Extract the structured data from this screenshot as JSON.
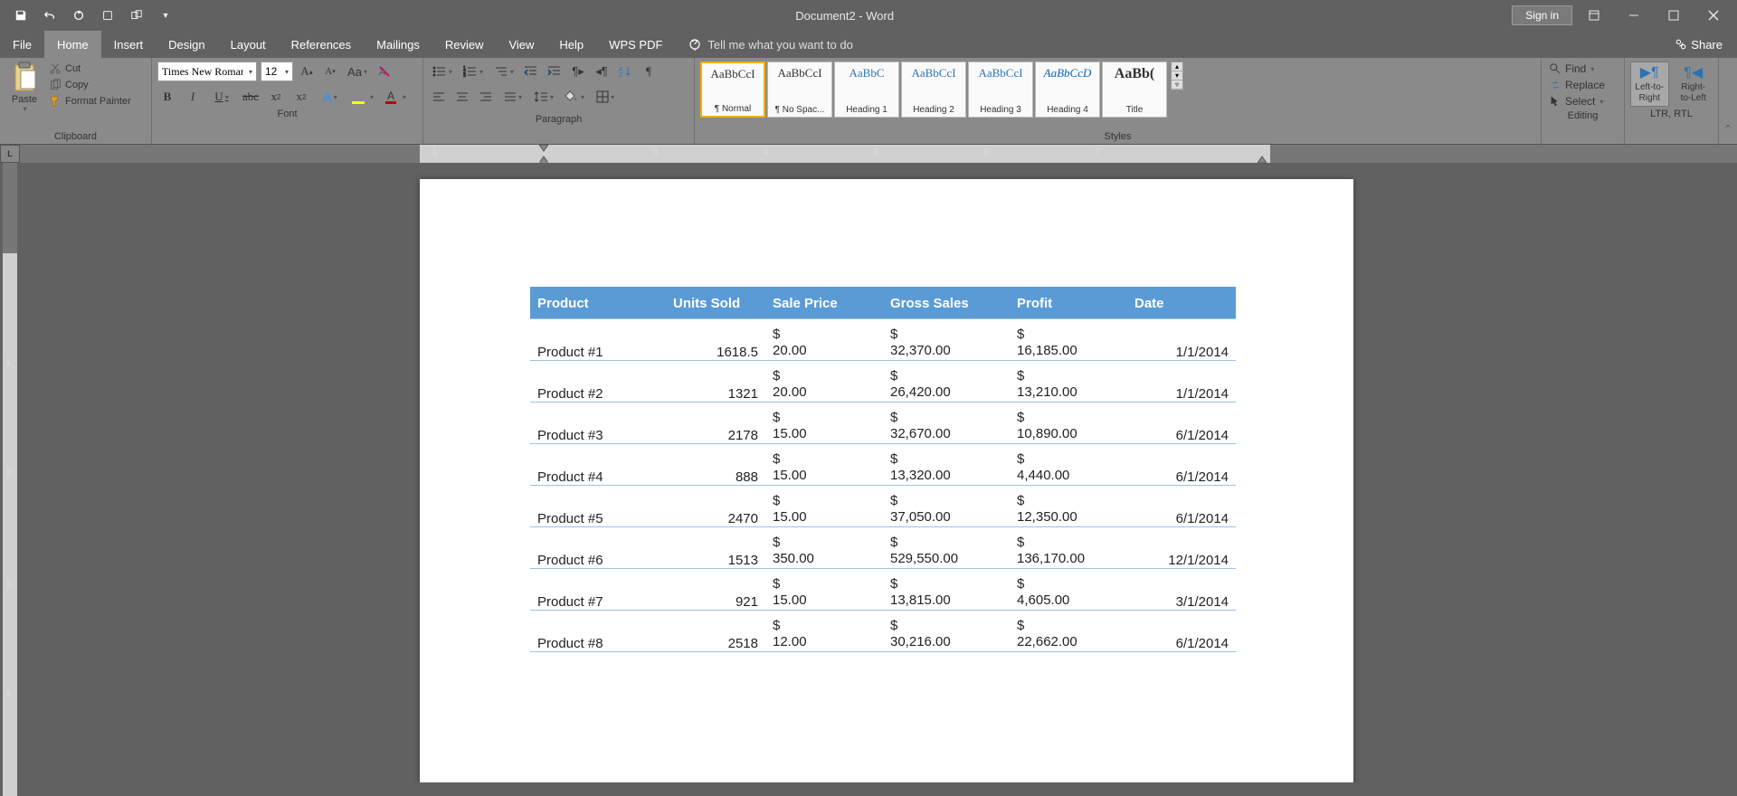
{
  "app": {
    "title": "Document2 - Word",
    "signin": "Sign in"
  },
  "menu": {
    "tabs": [
      "File",
      "Home",
      "Insert",
      "Design",
      "Layout",
      "References",
      "Mailings",
      "Review",
      "View",
      "Help",
      "WPS PDF"
    ],
    "active": "Home",
    "tellme": "Tell me what you want to do",
    "share": "Share"
  },
  "ribbon": {
    "clipboard": {
      "paste": "Paste",
      "cut": "Cut",
      "copy": "Copy",
      "format_painter": "Format Painter",
      "label": "Clipboard"
    },
    "font": {
      "name": "Times New Roman",
      "size": "12",
      "label": "Font"
    },
    "paragraph": {
      "label": "Paragraph"
    },
    "styles": {
      "label": "Styles",
      "items": [
        {
          "preview": "AaBbCcI",
          "label": "¶ Normal",
          "cls": ""
        },
        {
          "preview": "AaBbCcI",
          "label": "¶ No Spac...",
          "cls": ""
        },
        {
          "preview": "AaBbC",
          "label": "Heading 1",
          "cls": "heading"
        },
        {
          "preview": "AaBbCcI",
          "label": "Heading 2",
          "cls": "heading"
        },
        {
          "preview": "AaBbCcI",
          "label": "Heading 3",
          "cls": "heading"
        },
        {
          "preview": "AaBbCcD",
          "label": "Heading 4",
          "cls": "link"
        },
        {
          "preview": "AaBb(",
          "label": "Title",
          "cls": "title-s"
        }
      ]
    },
    "editing": {
      "find": "Find",
      "replace": "Replace",
      "select": "Select",
      "label": "Editing"
    },
    "rtl": {
      "ltr": "Left-to-Right",
      "rtl": "Right-to-Left",
      "label": "LTR, RTL"
    }
  },
  "table": {
    "header_bg": "#5b9bd5",
    "columns": [
      "Product",
      "Units Sold",
      "Sale Price",
      "Gross Sales",
      "Profit",
      "Date"
    ],
    "rows": [
      {
        "product": "Product #1",
        "units": "1618.5",
        "price": "20.00",
        "gross": "32,370.00",
        "profit": "16,185.00",
        "date": "1/1/2014"
      },
      {
        "product": "Product #2",
        "units": "1321",
        "price": "20.00",
        "gross": "26,420.00",
        "profit": "13,210.00",
        "date": "1/1/2014"
      },
      {
        "product": "Product #3",
        "units": "2178",
        "price": "15.00",
        "gross": "32,670.00",
        "profit": "10,890.00",
        "date": "6/1/2014"
      },
      {
        "product": "Product #4",
        "units": "888",
        "price": "15.00",
        "gross": "13,320.00",
        "profit": "4,440.00",
        "date": "6/1/2014"
      },
      {
        "product": "Product #5",
        "units": "2470",
        "price": "15.00",
        "gross": "37,050.00",
        "profit": "12,350.00",
        "date": "6/1/2014"
      },
      {
        "product": "Product #6",
        "units": "1513",
        "price": "350.00",
        "gross": "529,550.00",
        "profit": "136,170.00",
        "date": "12/1/2014"
      },
      {
        "product": "Product #7",
        "units": "921",
        "price": "15.00",
        "gross": "13,815.00",
        "profit": "4,605.00",
        "date": "3/1/2014"
      },
      {
        "product": "Product #8",
        "units": "2518",
        "price": "12.00",
        "gross": "30,216.00",
        "profit": "22,662.00",
        "date": "6/1/2014"
      }
    ]
  },
  "ruler": {
    "h_marks": [
      1,
      2,
      3,
      4,
      5,
      6,
      7
    ],
    "v_marks": [
      1,
      2,
      3,
      4
    ]
  }
}
